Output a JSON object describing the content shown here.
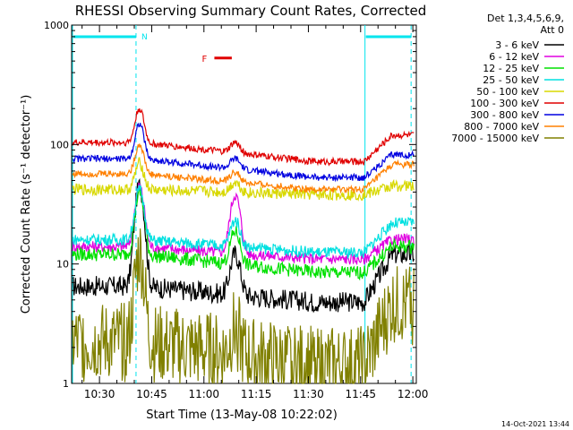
{
  "chart_data": {
    "type": "line",
    "title": "RHESSI Observing Summary Count Rates, Corrected",
    "xlabel": "Start Time (13-May-08 10:22:02)",
    "ylabel": "Corrected Count Rate (s⁻¹ detector⁻¹)",
    "yscale": "log",
    "ylim": [
      1,
      1000
    ],
    "xlim_minutes": [
      22,
      121
    ],
    "x_unit": "minutes after 10:00",
    "yticks": [
      {
        "value": 1,
        "label": "1"
      },
      {
        "value": 10,
        "label": "10"
      },
      {
        "value": 100,
        "label": "100"
      },
      {
        "value": 1000,
        "label": "1000"
      }
    ],
    "xticks": [
      {
        "value": 30,
        "label": "10:30"
      },
      {
        "value": 45,
        "label": "10:45"
      },
      {
        "value": 60,
        "label": "11:00"
      },
      {
        "value": 75,
        "label": "11:15"
      },
      {
        "value": 90,
        "label": "11:30"
      },
      {
        "value": 105,
        "label": "11:45"
      },
      {
        "value": 120,
        "label": "12:00"
      }
    ],
    "legend_header": [
      "Det 1,3,4,5,6,9,",
      "Att 0"
    ],
    "legend_placement": "right",
    "timestamp": "14-Oct-2021 13:44",
    "night_intervals": [
      [
        22,
        40.5
      ],
      [
        106,
        119.5
      ]
    ],
    "night_label": "N",
    "night_color": "#00e5ee",
    "flare_marker": {
      "label": "F",
      "x_range": [
        63,
        68
      ],
      "y": 530,
      "color": "#e00000"
    },
    "features": {
      "main_peak_minute": 41.5,
      "secondary_peak_minute": 69,
      "dip_center_minute": 92,
      "late_rise_start_minute": 106
    },
    "series": [
      {
        "name": "3 - 6 keV",
        "color": "#000000",
        "pre": 6.5,
        "peak": 45,
        "dip": 4.8,
        "post": 12,
        "second": 0.55,
        "noise": 0.09
      },
      {
        "name": "6 - 12 keV",
        "color": "#e000e0",
        "pre": 14,
        "peak": 45,
        "dip": 11,
        "post": 16,
        "second": 0.95,
        "noise": 0.05
      },
      {
        "name": "12 - 25 keV",
        "color": "#00e000",
        "pre": 12,
        "peak": 40,
        "dip": 8.5,
        "post": 14,
        "second": 0.4,
        "noise": 0.06
      },
      {
        "name": "25 - 50 keV",
        "color": "#00e0e0",
        "pre": 16,
        "peak": 42,
        "dip": 12.5,
        "post": 22,
        "second": 0.3,
        "noise": 0.05
      },
      {
        "name": "50 - 100 keV",
        "color": "#d8d800",
        "pre": 42,
        "peak": 70,
        "dip": 38,
        "post": 45,
        "second": 0.1,
        "noise": 0.05
      },
      {
        "name": "100 - 300 keV",
        "color": "#e00000",
        "pre": 104,
        "peak": 200,
        "dip": 72,
        "post": 120,
        "second": 0.1,
        "noise": 0.03
      },
      {
        "name": "300 - 800 keV",
        "color": "#0000e0",
        "pre": 76,
        "peak": 150,
        "dip": 53,
        "post": 82,
        "second": 0.1,
        "noise": 0.03
      },
      {
        "name": "800 - 7000 keV",
        "color": "#ff8000",
        "pre": 57,
        "peak": 100,
        "dip": 42,
        "post": 68,
        "second": 0.1,
        "noise": 0.03
      },
      {
        "name": "7000 - 15000 keV",
        "color": "#808000",
        "pre": 2.2,
        "peak": 12,
        "dip": 1.4,
        "post": 4.5,
        "second": 0.3,
        "noise": 0.35
      }
    ]
  }
}
